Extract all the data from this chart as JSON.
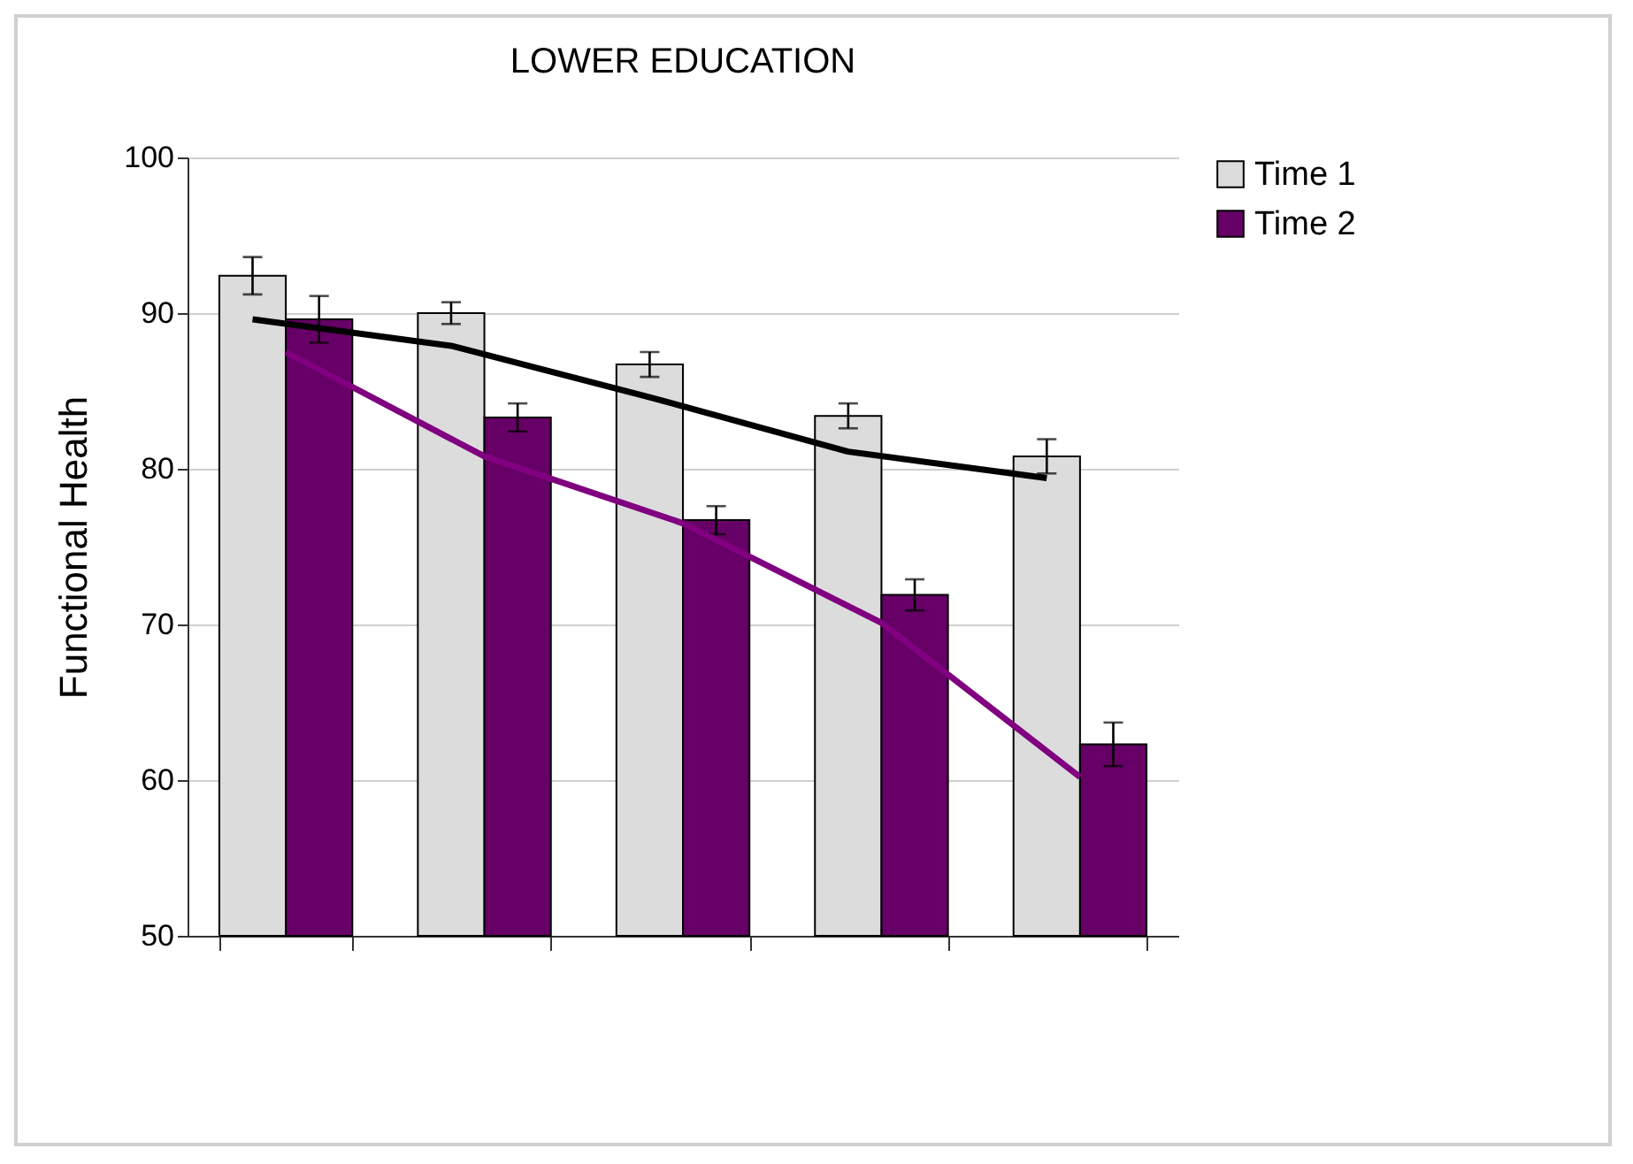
{
  "chart_data": {
    "type": "bar",
    "title": "LOWER EDUCATION",
    "ylabel": "Functional Health",
    "categories": [
      null,
      null,
      null,
      null,
      null
    ],
    "series": [
      {
        "name": "Time 1",
        "color": "#dcdcdc",
        "values": [
          92.4,
          90.0,
          86.7,
          83.4,
          80.8
        ],
        "errors": [
          1.2,
          0.7,
          0.8,
          0.8,
          1.1
        ]
      },
      {
        "name": "Time 2",
        "color": "#660066",
        "values": [
          89.6,
          83.3,
          76.7,
          71.9,
          62.3
        ],
        "errors": [
          1.5,
          0.9,
          0.9,
          1.0,
          1.4
        ]
      },
      {
        "type": "line",
        "color": "#000000",
        "values": [
          89.6,
          87.9,
          84.6,
          81.1,
          79.4
        ]
      },
      {
        "type": "line",
        "color": "#800080",
        "values": [
          87.5,
          80.8,
          76.5,
          70.1,
          60.2
        ]
      }
    ],
    "ylim": [
      50,
      100
    ],
    "yticks": [
      50,
      60,
      70,
      80,
      90,
      100
    ],
    "grid": "y",
    "legend": "top right",
    "tick_labels": "y"
  }
}
